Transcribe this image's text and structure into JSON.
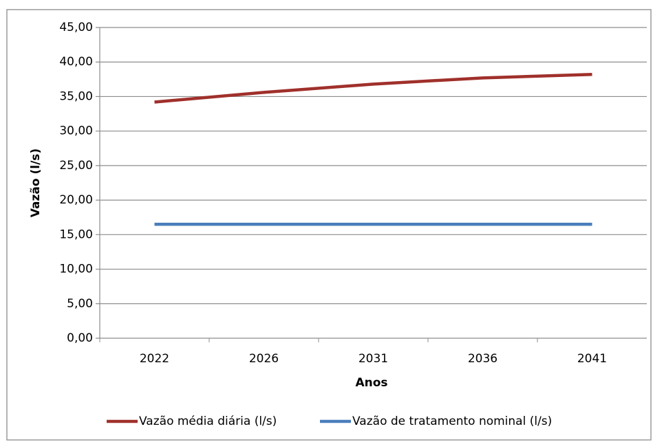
{
  "chart_data": {
    "type": "line",
    "y_label": "Vazão (l/s)",
    "x_label": "Anos",
    "categories": [
      "2022",
      "2026",
      "2031",
      "2036",
      "2041"
    ],
    "series": [
      {
        "name": "Vazão média diária (l/s)",
        "color": "#a0302b",
        "values": [
          34.2,
          35.6,
          36.8,
          37.7,
          38.2
        ]
      },
      {
        "name": "Vazão de tratamento nominal (l/s)",
        "color": "#4a7ebb",
        "values": [
          16.5,
          16.5,
          16.5,
          16.5,
          16.5
        ]
      }
    ],
    "ylim": [
      0,
      45
    ],
    "yticks": [
      {
        "value": 0,
        "label": "0,00"
      },
      {
        "value": 5,
        "label": "5,00"
      },
      {
        "value": 10,
        "label": "10,00"
      },
      {
        "value": 15,
        "label": "15,00"
      },
      {
        "value": 20,
        "label": "20,00"
      },
      {
        "value": 25,
        "label": "25,00"
      },
      {
        "value": 30,
        "label": "30,00"
      },
      {
        "value": 35,
        "label": "35,00"
      },
      {
        "value": 40,
        "label": "40,00"
      },
      {
        "value": 45,
        "label": "45,00"
      }
    ],
    "grid": true,
    "legend": "bottom"
  }
}
